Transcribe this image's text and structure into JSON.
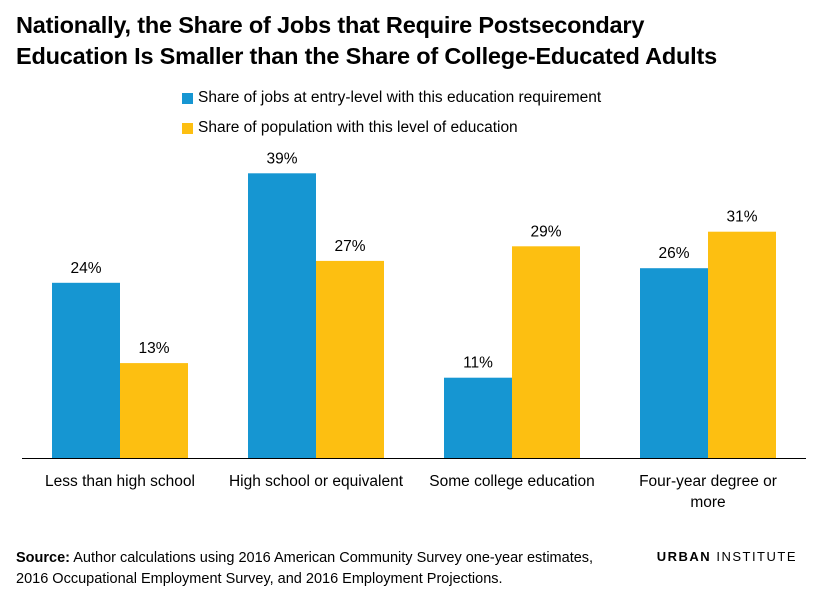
{
  "title_line1": "Nationally, the Share of Jobs that Require Postsecondary",
  "title_line2": "Education Is Smaller than the Share of College-Educated Adults",
  "source_label": "Source:",
  "source_line1": "Author calculations using 2016 American Community Survey one-year estimates,",
  "source_line2": "2016 Occupational Employment Survey, and 2016 Employment Projections.",
  "brand_part1": "URBAN",
  "brand_part2": "INSTITUTE",
  "chart_data": {
    "type": "bar",
    "title": "Nationally, the Share of Jobs that Require Postsecondary Education Is Smaller than the Share of College-Educated Adults",
    "categories": [
      [
        "Less than high school"
      ],
      [
        "High school or equivalent"
      ],
      [
        "Some college education"
      ],
      [
        "Four-year degree or",
        "more"
      ]
    ],
    "series": [
      {
        "name": "Share of jobs at entry-level with this education requirement",
        "color": "#1696D2",
        "values": [
          24,
          39,
          11,
          26
        ]
      },
      {
        "name": "Share of population with this level of education",
        "color": "#FDBF11",
        "values": [
          13,
          27,
          29,
          31
        ]
      }
    ],
    "value_suffix": "%",
    "ylim": [
      0,
      40
    ],
    "xlabel": "",
    "ylabel": "",
    "grid": false,
    "legend_position": "top"
  }
}
